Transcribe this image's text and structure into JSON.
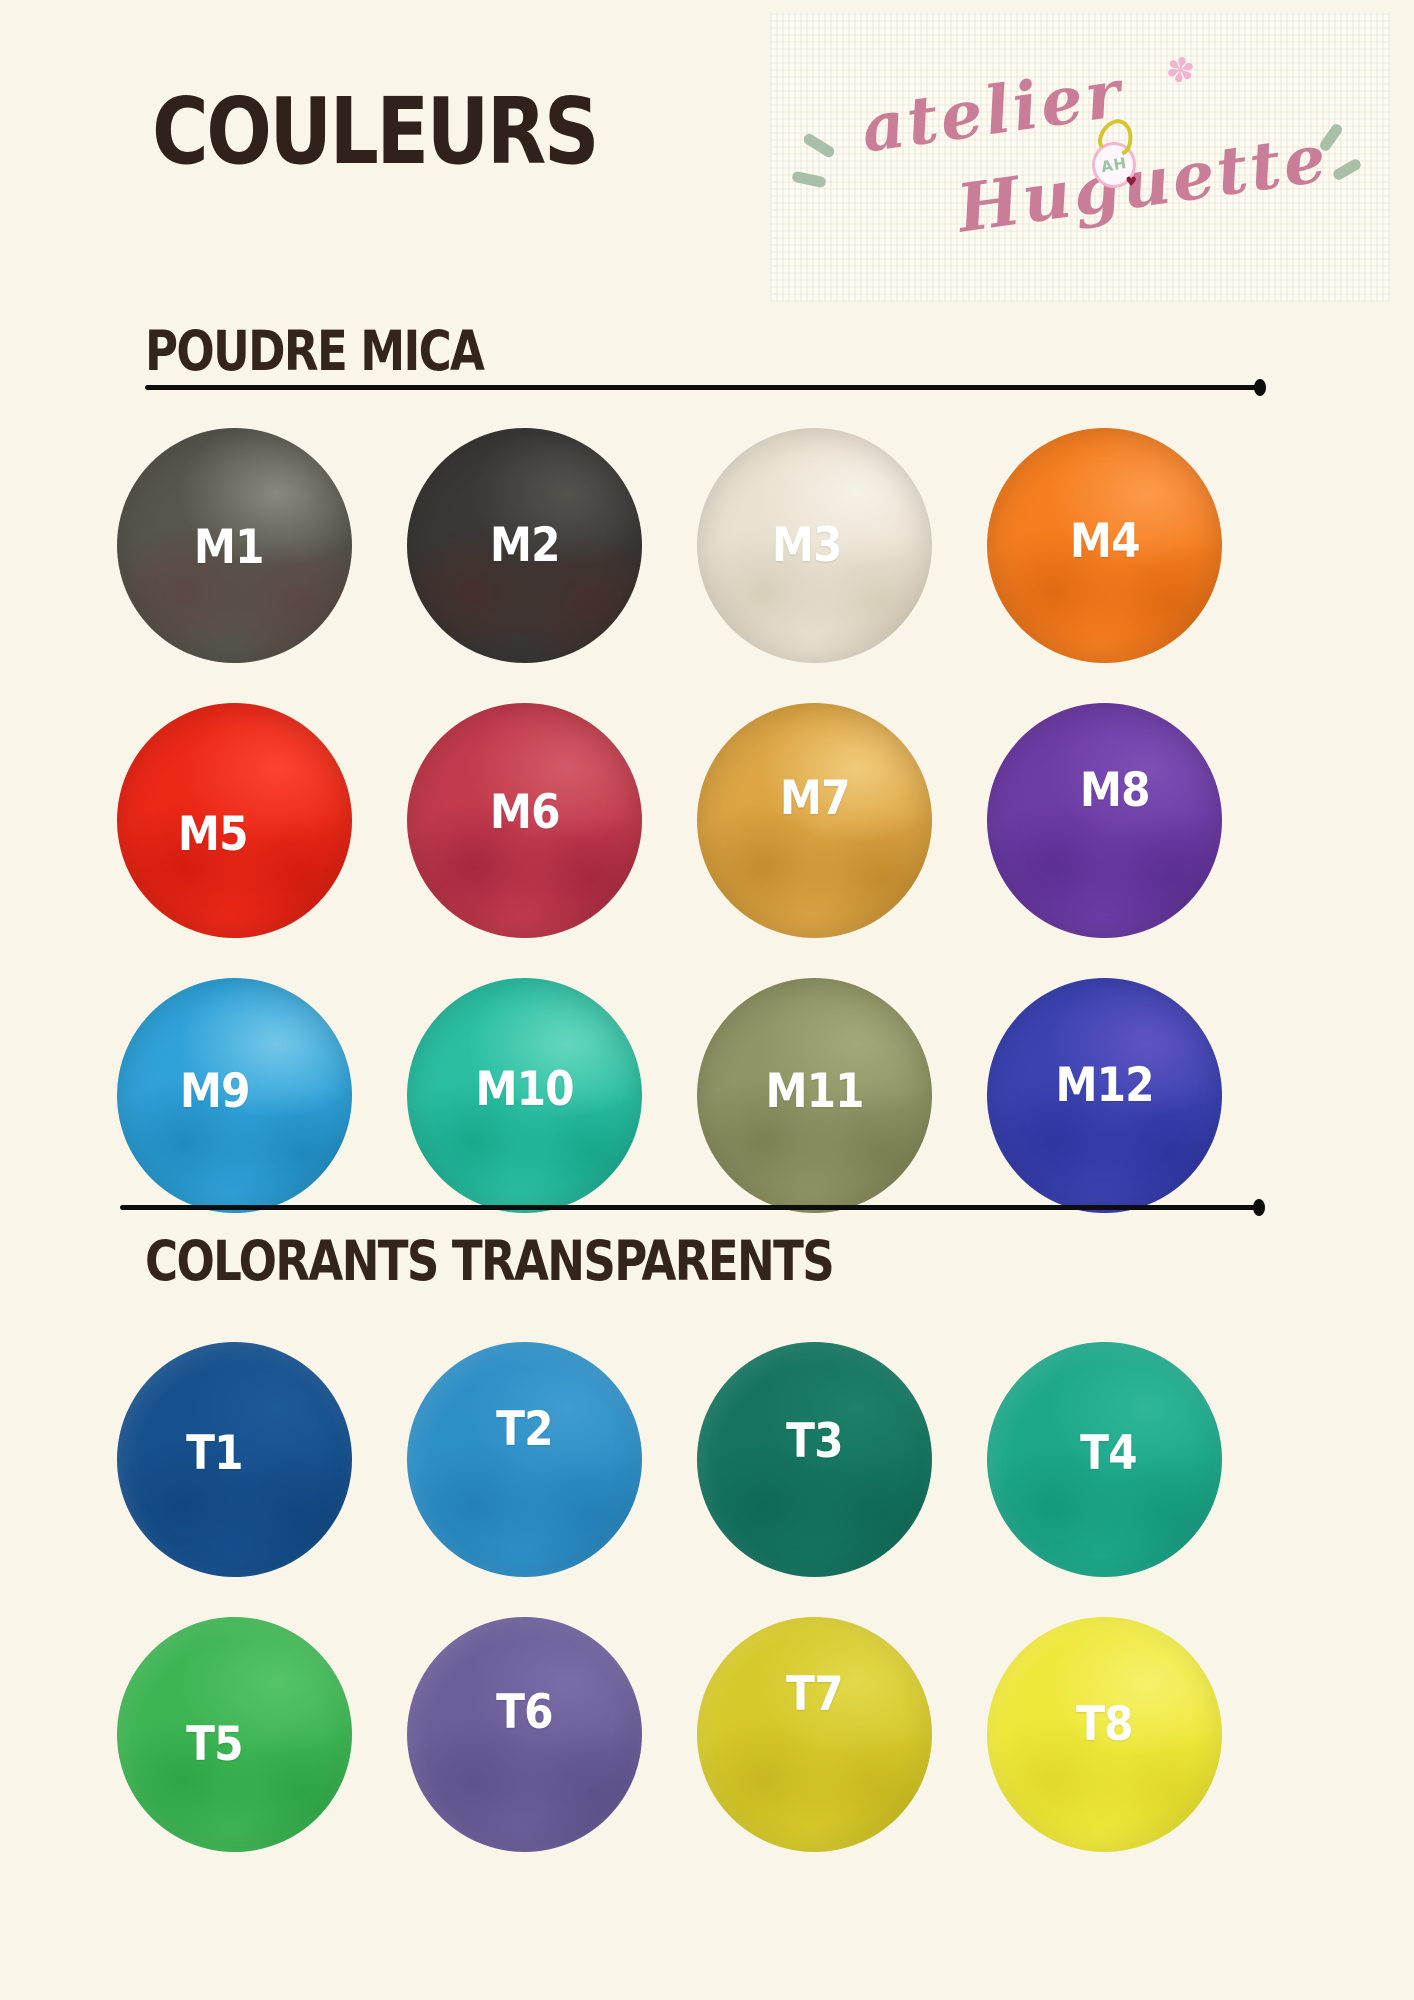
{
  "page": {
    "title": "COULEURS",
    "background": "#faf5e9",
    "heading_color": "#33251c",
    "divider_color": "#0d0d0d",
    "label_color": "#ffffff"
  },
  "logo": {
    "line1": "atelier",
    "line2": "Huguette",
    "monogram": "AH",
    "script_pink": "#c97d97",
    "leaf_green": "#a9bfa7",
    "loop_yellow": "#d5c62c",
    "flower_pink": "#f2b3ce",
    "heart_red": "#8c1f3f",
    "flower_glyph": "✽",
    "heart_glyph": "♥"
  },
  "sections": [
    {
      "heading": "POUDRE MICA",
      "items": [
        {
          "code": "M1",
          "colors": [
            "#57554c",
            "#5c4843",
            "#8a887c"
          ]
        },
        {
          "code": "M2",
          "colors": [
            "#3a3735",
            "#46302b",
            "#55524e"
          ]
        },
        {
          "code": "M3",
          "colors": [
            "#e9e2d2",
            "#d8cfba",
            "#f6f1e6"
          ]
        },
        {
          "code": "M4",
          "colors": [
            "#f57e20",
            "#e06a14",
            "#fb9a4a"
          ]
        },
        {
          "code": "M5",
          "colors": [
            "#ec2817",
            "#d41d10",
            "#fa4430"
          ]
        },
        {
          "code": "M6",
          "colors": [
            "#c23b4d",
            "#a62840",
            "#d25a67"
          ]
        },
        {
          "code": "M7",
          "colors": [
            "#dca443",
            "#c58c2e",
            "#f0cb7a"
          ]
        },
        {
          "code": "M8",
          "colors": [
            "#6d3da6",
            "#5c2f93",
            "#7d4fb4"
          ]
        },
        {
          "code": "M9",
          "colors": [
            "#2fa2d9",
            "#1f8ac0",
            "#72c7e8"
          ]
        },
        {
          "code": "M10",
          "colors": [
            "#2bbfa2",
            "#18a88c",
            "#64d6bd"
          ]
        },
        {
          "code": "M11",
          "colors": [
            "#8f9565",
            "#7b8153",
            "#a2a878"
          ]
        },
        {
          "code": "M12",
          "colors": [
            "#3b43b3",
            "#2e35a0",
            "#5f54c0"
          ]
        }
      ]
    },
    {
      "heading": "COLORANTS TRANSPARENTS",
      "items": [
        {
          "code": "T1",
          "colors": [
            "#16508d",
            "#124680",
            "#1d5a98"
          ]
        },
        {
          "code": "T2",
          "colors": [
            "#2e8fc6",
            "#2481b8",
            "#3f9cd0"
          ]
        },
        {
          "code": "T3",
          "colors": [
            "#15745e",
            "#106a55",
            "#1d8069"
          ]
        },
        {
          "code": "T4",
          "colors": [
            "#1ea88a",
            "#15987b",
            "#2fb698"
          ]
        },
        {
          "code": "T5",
          "colors": [
            "#3eb553",
            "#2fa646",
            "#55c468"
          ]
        },
        {
          "code": "T6",
          "colors": [
            "#6b5e99",
            "#5f528c",
            "#7a6da7"
          ]
        },
        {
          "code": "T7",
          "colors": [
            "#d6c92b",
            "#c6b91f",
            "#e2d84a"
          ]
        },
        {
          "code": "T8",
          "colors": [
            "#eee83b",
            "#e0d92a",
            "#f6f16a"
          ]
        }
      ]
    }
  ]
}
